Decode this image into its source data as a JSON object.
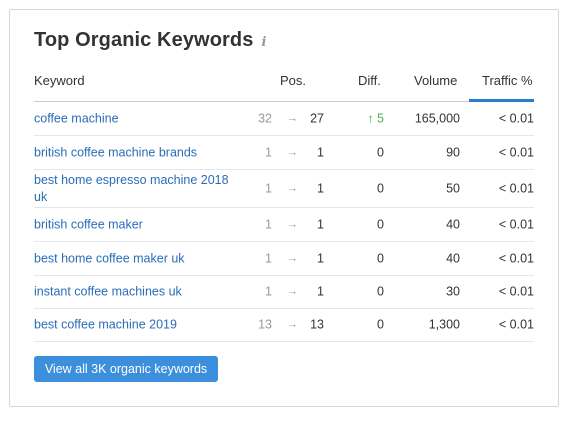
{
  "widget": {
    "title": "Top Organic Keywords",
    "info_icon": "info-icon"
  },
  "table": {
    "headers": {
      "keyword": "Keyword",
      "pos": "Pos.",
      "diff": "Diff.",
      "volume": "Volume",
      "traffic": "Traffic %"
    },
    "arrow_glyph": "→",
    "rows": [
      {
        "keyword": "coffee machine",
        "prev": "32",
        "pos": "27",
        "diff": "↑ 5",
        "diff_up": true,
        "volume": "165,000",
        "traffic": "< 0.01"
      },
      {
        "keyword": "british coffee machine brands",
        "prev": "1",
        "pos": "1",
        "diff": "0",
        "diff_up": false,
        "volume": "90",
        "traffic": "< 0.01"
      },
      {
        "keyword": "best home espresso machine 2018 uk",
        "prev": "1",
        "pos": "1",
        "diff": "0",
        "diff_up": false,
        "volume": "50",
        "traffic": "< 0.01"
      },
      {
        "keyword": "british coffee maker",
        "prev": "1",
        "pos": "1",
        "diff": "0",
        "diff_up": false,
        "volume": "40",
        "traffic": "< 0.01"
      },
      {
        "keyword": "best home coffee maker uk",
        "prev": "1",
        "pos": "1",
        "diff": "0",
        "diff_up": false,
        "volume": "40",
        "traffic": "< 0.01"
      },
      {
        "keyword": "instant coffee machines uk",
        "prev": "1",
        "pos": "1",
        "diff": "0",
        "diff_up": false,
        "volume": "30",
        "traffic": "< 0.01"
      },
      {
        "keyword": "best coffee machine 2019",
        "prev": "13",
        "pos": "13",
        "diff": "0",
        "diff_up": false,
        "volume": "1,300",
        "traffic": "< 0.01"
      }
    ]
  },
  "button": {
    "label": "View all 3K organic keywords"
  },
  "colors": {
    "link": "#2a6db8",
    "accent": "#2a7dd1",
    "button": "#3b8fdc",
    "positive": "#4caf50",
    "muted": "#999999"
  }
}
